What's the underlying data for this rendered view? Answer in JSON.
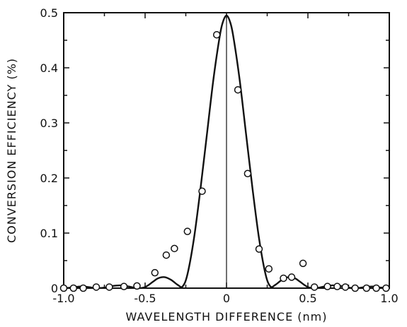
{
  "chart_data": {
    "type": "scatter",
    "title": "",
    "xlabel": "WAVELENGTH DIFFERENCE (nm)",
    "ylabel": "CONVERSION EFFICIENCY (%)",
    "xlim": [
      -1.0,
      1.0
    ],
    "ylim": [
      0,
      0.5
    ],
    "grid": false,
    "legend": "none",
    "x_ticks": [
      -1.0,
      -0.75,
      -0.5,
      -0.25,
      0,
      0.25,
      0.5,
      0.75,
      1.0
    ],
    "x_tick_labels": [
      "-1.0",
      "",
      "-0.5",
      "",
      "0",
      "",
      "0.5",
      "",
      "1.0"
    ],
    "y_ticks": [
      0,
      0.05,
      0.1,
      0.15,
      0.2,
      0.25,
      0.3,
      0.35,
      0.4,
      0.45,
      0.5
    ],
    "y_tick_labels": [
      "0",
      "",
      "0.1",
      "",
      "0.2",
      "",
      "0.3",
      "",
      "0.4",
      "",
      "0.5"
    ],
    "series": [
      {
        "kind": "line",
        "color": "#111111",
        "x": [
          -1.0,
          -0.95,
          -0.9,
          -0.85,
          -0.8,
          -0.75,
          -0.7,
          -0.65,
          -0.6,
          -0.55,
          -0.5,
          -0.45,
          -0.42,
          -0.38,
          -0.34,
          -0.3,
          -0.27,
          -0.24,
          -0.2,
          -0.16,
          -0.12,
          -0.08,
          -0.04,
          -0.02,
          0,
          0.02,
          0.04,
          0.08,
          0.12,
          0.16,
          0.2,
          0.24,
          0.27,
          0.3,
          0.34,
          0.38,
          0.42,
          0.45,
          0.5,
          0.55,
          0.6,
          0.65,
          0.7,
          0.75,
          0.8,
          0.85,
          0.9,
          0.95,
          1.0
        ],
        "y": [
          0.0,
          0.001,
          0.003,
          0.002,
          0.0,
          0.001,
          0.004,
          0.005,
          0.003,
          0.0,
          0.002,
          0.012,
          0.018,
          0.02,
          0.015,
          0.006,
          0.003,
          0.025,
          0.09,
          0.18,
          0.28,
          0.38,
          0.46,
          0.485,
          0.495,
          0.485,
          0.46,
          0.38,
          0.28,
          0.18,
          0.09,
          0.025,
          0.003,
          0.006,
          0.015,
          0.02,
          0.018,
          0.012,
          0.002,
          0.0,
          0.003,
          0.005,
          0.004,
          0.001,
          0.0,
          0.002,
          0.003,
          0.001,
          0.0
        ]
      },
      {
        "kind": "points",
        "marker": "open-circle",
        "color": "#111111",
        "x": [
          -1.0,
          -0.94,
          -0.88,
          -0.8,
          -0.72,
          -0.63,
          -0.55,
          -0.44,
          -0.37,
          -0.32,
          -0.24,
          -0.15,
          -0.06,
          0.07,
          0.13,
          0.2,
          0.26,
          0.35,
          0.4,
          0.47,
          0.54,
          0.62,
          0.68,
          0.73,
          0.79,
          0.86,
          0.92,
          0.98
        ],
        "y": [
          0.0,
          0.0,
          0.0,
          0.002,
          0.002,
          0.003,
          0.004,
          0.028,
          0.06,
          0.072,
          0.103,
          0.176,
          0.46,
          0.36,
          0.208,
          0.071,
          0.035,
          0.018,
          0.02,
          0.045,
          0.002,
          0.003,
          0.003,
          0.002,
          0.0,
          0.0,
          0.0,
          0.0
        ]
      }
    ]
  }
}
